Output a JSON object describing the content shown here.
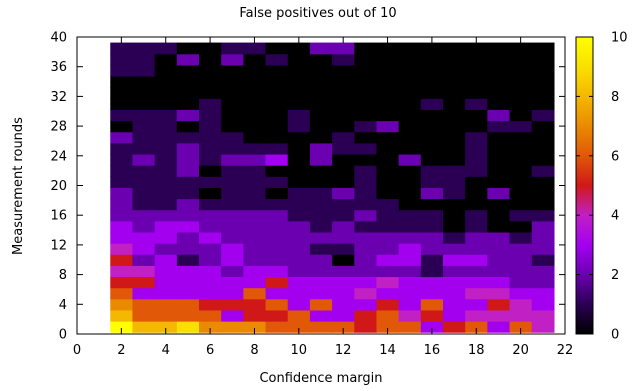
{
  "chart_data": {
    "type": "heatmap",
    "title": "False positives out of 10",
    "xlabel": "Confidence margin",
    "ylabel": "Measurement rounds",
    "xlim": [
      0,
      22
    ],
    "ylim": [
      0,
      40
    ],
    "xticks": [
      0,
      2,
      4,
      6,
      8,
      10,
      12,
      14,
      16,
      18,
      20,
      22
    ],
    "yticks": [
      0,
      4,
      8,
      12,
      16,
      20,
      24,
      28,
      32,
      36,
      40
    ],
    "colorbar": {
      "min": 0,
      "max": 10,
      "ticks": [
        0,
        2,
        4,
        6,
        8,
        10
      ],
      "palette": "gnuplot pm3d (black-purple-red-yellow)"
    },
    "cell_width": 1,
    "cell_height": 1.5,
    "x": [
      2,
      3,
      4,
      5,
      6,
      7,
      8,
      9,
      10,
      11,
      12,
      13,
      14,
      15,
      16,
      17,
      18,
      19,
      20,
      21
    ],
    "y": [
      1,
      2.5,
      4,
      5.5,
      7,
      8.5,
      10,
      11.5,
      13,
      14.5,
      16,
      17.5,
      19,
      20.5,
      22,
      23.5,
      25,
      26.5,
      28,
      29.5,
      31,
      32.5,
      34,
      35.5,
      37,
      38.5
    ],
    "values": [
      [
        10,
        8,
        8,
        9,
        7,
        7,
        7,
        6,
        6,
        6,
        6,
        5,
        6,
        6,
        3,
        5,
        6,
        3,
        6,
        4
      ],
      [
        8,
        6,
        6,
        6,
        6,
        3,
        5,
        5,
        6,
        3,
        3,
        5,
        6,
        4,
        5,
        3,
        4,
        4,
        4,
        4
      ],
      [
        7,
        6,
        6,
        6,
        5,
        5,
        5,
        6,
        3,
        6,
        3,
        3,
        5,
        3,
        6,
        3,
        3,
        5,
        4,
        3
      ],
      [
        6,
        3,
        3,
        3,
        3,
        3,
        6,
        3,
        3,
        3,
        3,
        4,
        3,
        3,
        3,
        3,
        4,
        4,
        3,
        3
      ],
      [
        5,
        5,
        3,
        3,
        3,
        3,
        3,
        5,
        3,
        3,
        3,
        3,
        4,
        3,
        3,
        3,
        3,
        3,
        2,
        2
      ],
      [
        4,
        4,
        3,
        3,
        3,
        2,
        3,
        3,
        2,
        2,
        2,
        2,
        2,
        2,
        1,
        2,
        2,
        2,
        2,
        2
      ],
      [
        5,
        2,
        3,
        1,
        2,
        3,
        2,
        2,
        2,
        2,
        0,
        2,
        3,
        3,
        1,
        3,
        3,
        2,
        2,
        1
      ],
      [
        4,
        3,
        2,
        2,
        2,
        3,
        2,
        2,
        2,
        1,
        1,
        2,
        2,
        3,
        2,
        2,
        2,
        2,
        2,
        2
      ],
      [
        3,
        3,
        3,
        2,
        3,
        2,
        2,
        2,
        2,
        2,
        2,
        2,
        2,
        2,
        2,
        1,
        2,
        2,
        1,
        2
      ],
      [
        3,
        2,
        3,
        3,
        2,
        2,
        2,
        2,
        2,
        1,
        2,
        1,
        1,
        1,
        1,
        0,
        1,
        0,
        0,
        2
      ],
      [
        2,
        2,
        2,
        2,
        2,
        2,
        2,
        2,
        1,
        1,
        1,
        2,
        1,
        1,
        1,
        0,
        1,
        0,
        1,
        1
      ],
      [
        2,
        1,
        1,
        2,
        1,
        1,
        1,
        1,
        1,
        1,
        1,
        1,
        1,
        0,
        0,
        0,
        0,
        0,
        0,
        0
      ],
      [
        2,
        1,
        1,
        1,
        0,
        1,
        1,
        0,
        1,
        1,
        2,
        1,
        0,
        0,
        2,
        1,
        0,
        2,
        0,
        0
      ],
      [
        1,
        1,
        1,
        1,
        1,
        1,
        1,
        1,
        0,
        0,
        0,
        1,
        0,
        0,
        1,
        1,
        0,
        0,
        0,
        0
      ],
      [
        1,
        1,
        1,
        2,
        0,
        1,
        1,
        0,
        0,
        0,
        0,
        1,
        0,
        0,
        1,
        1,
        1,
        0,
        0,
        1
      ],
      [
        1,
        2,
        1,
        2,
        1,
        2,
        2,
        3,
        0,
        2,
        0,
        0,
        0,
        2,
        0,
        0,
        1,
        0,
        0,
        0
      ],
      [
        1,
        1,
        1,
        2,
        1,
        1,
        1,
        1,
        0,
        2,
        1,
        1,
        0,
        0,
        0,
        0,
        1,
        0,
        0,
        0
      ],
      [
        2,
        1,
        1,
        1,
        1,
        1,
        0,
        0,
        0,
        0,
        1,
        0,
        0,
        0,
        0,
        0,
        1,
        0,
        0,
        0
      ],
      [
        0,
        1,
        1,
        0,
        1,
        0,
        0,
        0,
        1,
        0,
        0,
        1,
        2,
        0,
        0,
        0,
        0,
        1,
        1,
        0
      ],
      [
        1,
        1,
        1,
        2,
        1,
        0,
        0,
        0,
        1,
        0,
        0,
        0,
        0,
        0,
        0,
        0,
        0,
        2,
        0,
        1
      ],
      [
        0,
        0,
        0,
        0,
        1,
        0,
        0,
        0,
        0,
        0,
        0,
        0,
        0,
        0,
        1,
        0,
        1,
        0,
        0,
        0
      ],
      [
        0,
        0,
        0,
        0,
        0,
        0,
        0,
        0,
        0,
        0,
        0,
        0,
        0,
        0,
        0,
        0,
        0,
        0,
        0,
        0
      ],
      [
        0,
        0,
        0,
        0,
        0,
        0,
        0,
        0,
        0,
        0,
        0,
        0,
        0,
        0,
        0,
        0,
        0,
        0,
        0,
        0
      ],
      [
        1,
        1,
        0,
        0,
        0,
        0,
        0,
        0,
        0,
        0,
        0,
        0,
        0,
        0,
        0,
        0,
        0,
        0,
        0,
        0
      ],
      [
        1,
        1,
        0,
        2,
        0,
        2,
        0,
        1,
        0,
        0,
        1,
        0,
        0,
        0,
        0,
        0,
        0,
        0,
        0,
        0
      ],
      [
        1,
        1,
        1,
        0,
        0,
        1,
        1,
        0,
        0,
        2,
        2,
        0,
        0,
        0,
        0,
        0,
        0,
        0,
        0,
        0
      ]
    ]
  }
}
